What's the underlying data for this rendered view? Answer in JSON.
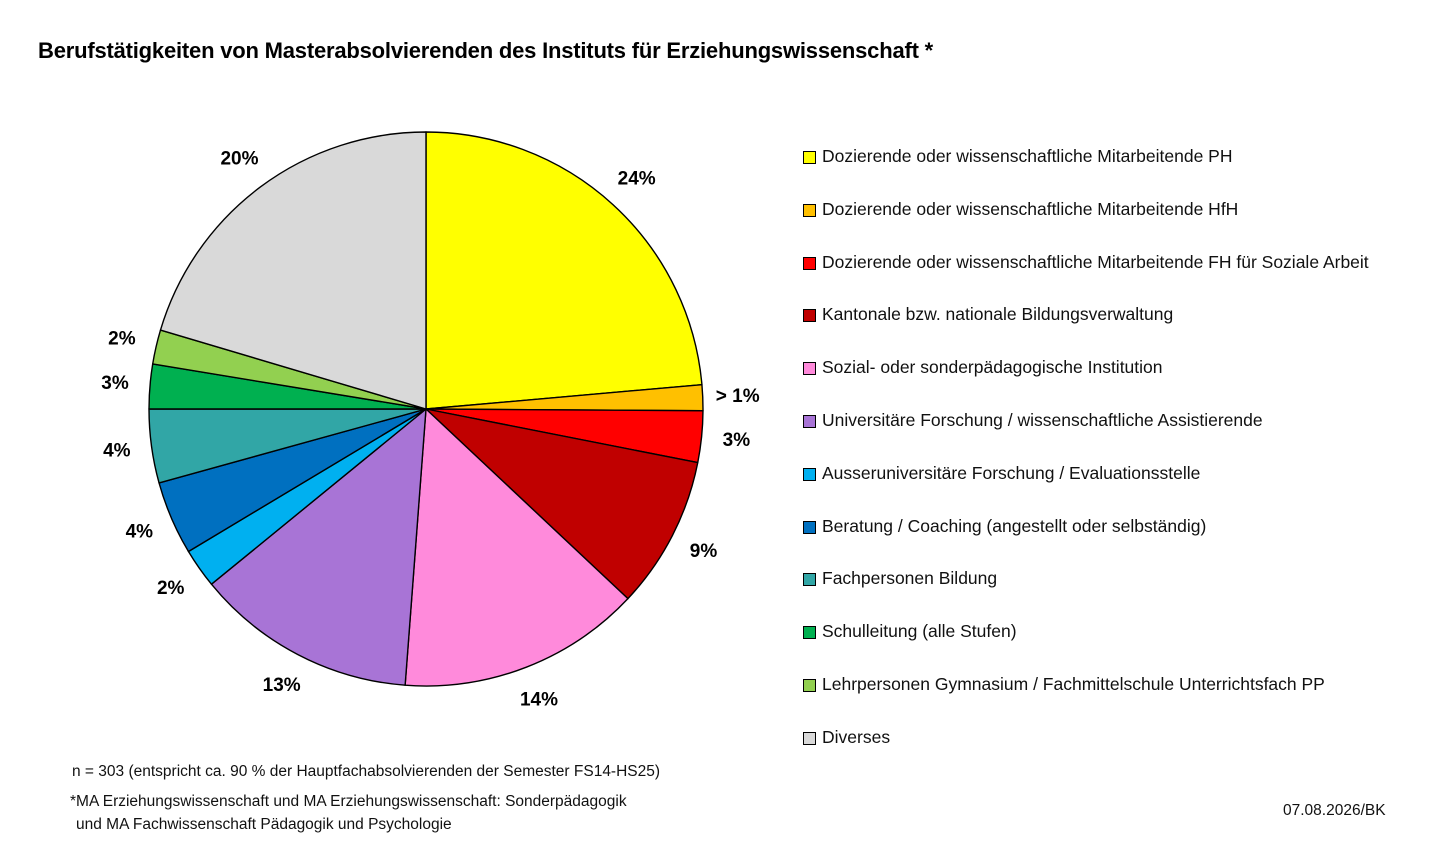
{
  "title": "Berufstätigkeiten von Masterabsolvierenden des Instituts für Erziehungswissenschaft *",
  "chart_data": {
    "type": "pie",
    "title": "Berufstätigkeiten von Masterabsolvierenden des Instituts für Erziehungswissenschaft *",
    "unit": "%",
    "start_angle": "12 o'clock, clockwise",
    "slices": [
      {
        "name": "Dozierende oder wissenschaftliche Mitarbeitende PH",
        "value": 23.6,
        "label": "24%",
        "color": "#FFFF00"
      },
      {
        "name": "Dozierende oder wissenschaftliche Mitarbeitende HfH",
        "value": 1.5,
        "label": "> 1%",
        "color": "#FFC000"
      },
      {
        "name": "Dozierende oder wissenschaftliche Mitarbeitende FH für Soziale Arbeit",
        "value": 3.0,
        "label": "3%",
        "color": "#FF0000"
      },
      {
        "name": "Kantonale bzw. nationale Bildungsverwaltung",
        "value": 8.9,
        "label": "9%",
        "color": "#C00000"
      },
      {
        "name": "Sozial- oder sonderpädagogische Institution",
        "value": 14.2,
        "label": "14%",
        "color": "#FF8ADB"
      },
      {
        "name": "Universitäre Forschung / wissenschaftliche Assistierende",
        "value": 12.9,
        "label": "13%",
        "color": "#A874D6"
      },
      {
        "name": "Ausseruniversitäre Forschung / Evaluationsstelle",
        "value": 2.3,
        "label": "2%",
        "color": "#00B0F0"
      },
      {
        "name": "Beratung / Coaching (angestellt oder selbständig)",
        "value": 4.3,
        "label": "4%",
        "color": "#0070C0"
      },
      {
        "name": "Fachpersonen Bildung",
        "value": 4.3,
        "label": "4%",
        "color": "#31A6A6"
      },
      {
        "name": "Schulleitung (alle Stufen)",
        "value": 2.6,
        "label": "3%",
        "color": "#00B050"
      },
      {
        "name": "Lehrpersonen Gymnasium / Fachmittelschule Unterrichtsfach PP",
        "value": 2.0,
        "label": "2%",
        "color": "#92D050"
      },
      {
        "name": "Diverses",
        "value": 20.4,
        "label": "20%",
        "color": "#D9D9D9"
      }
    ],
    "legend_position": "right"
  },
  "footnotes": {
    "n": "n = 303 (entspricht ca. 90 % der Hauptfachabsolvierenden der Semester FS14-HS25)",
    "programs_line1": "*MA Erziehungswissenschaft und MA Erziehungswissenschaft: Sonderpädagogik",
    "programs_line2": "und MA Fachwissenschaft Pädagogik und Psychologie"
  },
  "date_stamp": "07.08.2026/BK"
}
